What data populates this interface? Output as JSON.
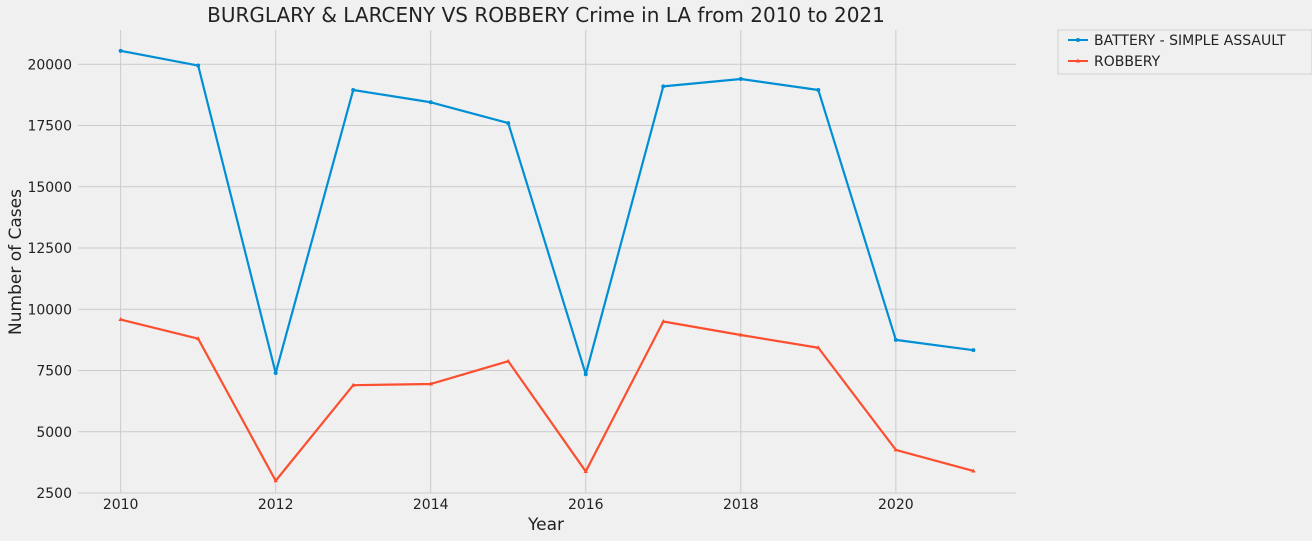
{
  "chart_data": {
    "type": "line",
    "title": "BURGLARY & LARCENY VS ROBBERY Crime in LA from 2010 to 2021",
    "xlabel": "Year",
    "ylabel": "Number of Cases",
    "x": [
      2010,
      2011,
      2012,
      2013,
      2014,
      2015,
      2016,
      2017,
      2018,
      2019,
      2020,
      2021
    ],
    "xlim": [
      2009.45,
      2021.55
    ],
    "ylim": [
      2500,
      21400
    ],
    "xticks": [
      2010,
      2012,
      2014,
      2016,
      2018,
      2020
    ],
    "yticks": [
      2500,
      5000,
      7500,
      10000,
      12500,
      15000,
      17500,
      20000
    ],
    "grid": true,
    "legend_position": "outside top-right",
    "series": [
      {
        "name": "BATTERY - SIMPLE ASSAULT",
        "color": "#008fd5",
        "marker": "dot",
        "values": [
          20550,
          19950,
          7400,
          18950,
          18450,
          17600,
          7350,
          19100,
          19400,
          18950,
          8750,
          8330
        ]
      },
      {
        "name": "ROBBERY",
        "color": "#fc4f30",
        "marker": "tri",
        "values": [
          9580,
          8800,
          3000,
          6900,
          6950,
          7880,
          3380,
          9500,
          8950,
          8430,
          4260,
          3400
        ]
      }
    ]
  }
}
